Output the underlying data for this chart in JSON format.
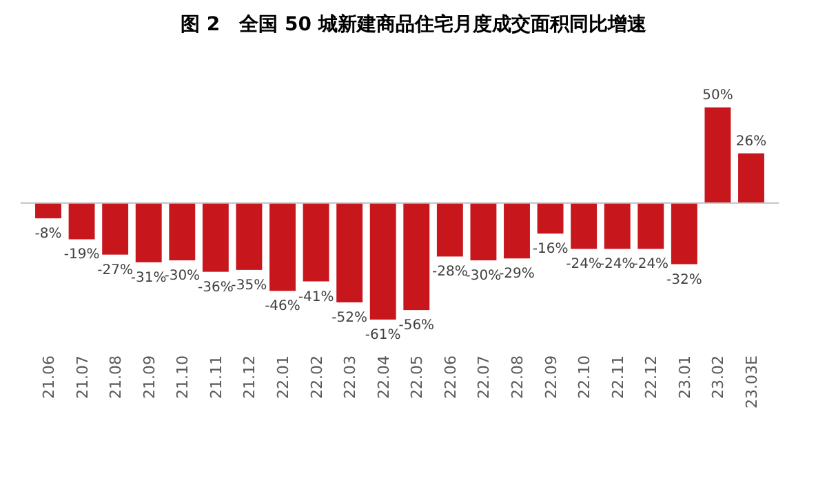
{
  "chart_data": {
    "type": "bar",
    "title": "图 2　全国 50 城新建商品住宅月度成交面积同比增速",
    "categories": [
      "21.06",
      "21.07",
      "21.08",
      "21.09",
      "21.10",
      "21.11",
      "21.12",
      "22.01",
      "22.02",
      "22.03",
      "22.04",
      "22.05",
      "22.06",
      "22.07",
      "22.08",
      "22.09",
      "22.10",
      "22.11",
      "22.12",
      "23.01",
      "23.02",
      "23.03E"
    ],
    "values": [
      -8,
      -19,
      -27,
      -31,
      -30,
      -36,
      -35,
      -46,
      -41,
      -52,
      -61,
      -56,
      -28,
      -30,
      -29,
      -16,
      -24,
      -24,
      -24,
      -32,
      50,
      26
    ],
    "value_labels": [
      "-8%",
      "-19%",
      "-27%",
      "-31%",
      "-30%",
      "-36%",
      "-35%",
      "-46%",
      "-41%",
      "-52%",
      "-61%",
      "-56%",
      "-28%",
      "-30%",
      "-29%",
      "-16%",
      "-24%",
      "-24%",
      "-24%",
      "-32%",
      "50%",
      "26%"
    ],
    "color": "#c8161d"
  }
}
